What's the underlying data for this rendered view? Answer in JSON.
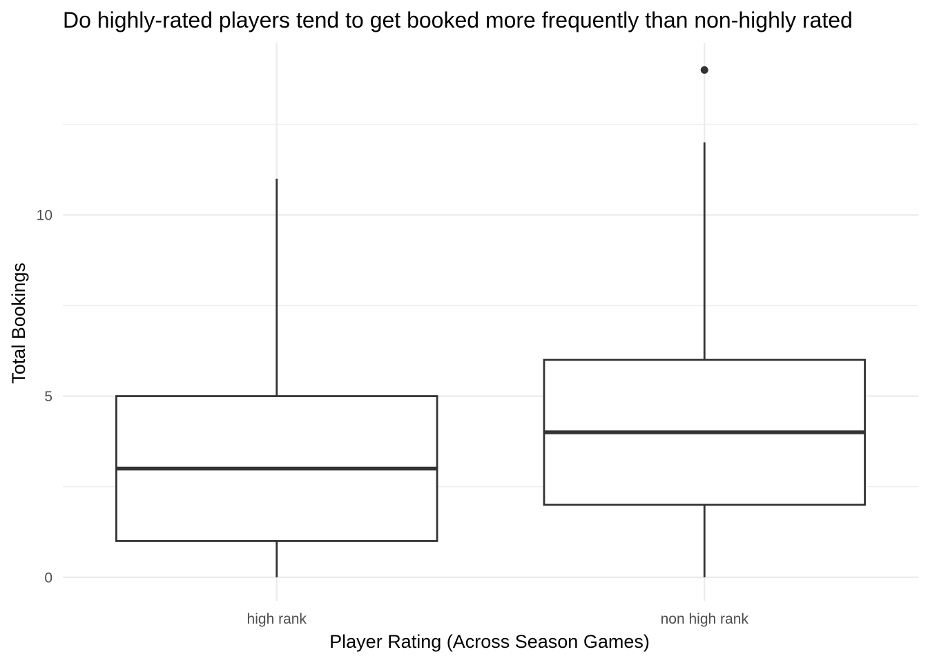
{
  "chart_data": {
    "type": "boxplot",
    "title": "Do highly-rated players tend to get booked more frequently than non-highly rated",
    "xlabel": "Player Rating (Across Season Games)",
    "ylabel": "Total Bookings",
    "categories": [
      "high rank",
      "non high rank"
    ],
    "boxes": [
      {
        "category": "high rank",
        "min": 0,
        "q1": 1,
        "median": 3,
        "q3": 5,
        "max": 11,
        "outliers": []
      },
      {
        "category": "non high rank",
        "min": 0,
        "q1": 2,
        "median": 4,
        "q3": 6,
        "max": 12,
        "outliers": [
          14
        ]
      }
    ],
    "ylim": [
      -0.65,
      14.75
    ],
    "y_ticks": [
      0,
      5,
      10
    ],
    "y_minor_ticks": [
      2.5,
      7.5,
      12.5
    ],
    "grid": true,
    "colors": {
      "box_line": "#333333",
      "box_fill": "#ffffff",
      "grid": "#ebebeb"
    }
  }
}
